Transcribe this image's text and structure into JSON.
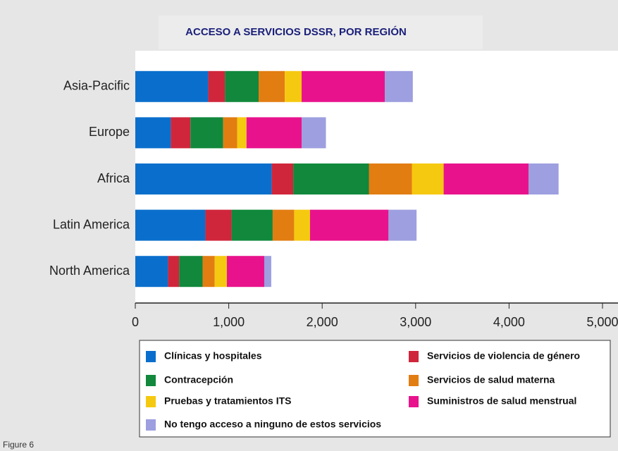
{
  "chart_data": {
    "type": "stacked-barh",
    "title": "ACCESO A SERVICIOS DSSR, POR REGIÓN",
    "caption": "Figure 6",
    "categories": [
      "Asia-Pacific",
      "Europe",
      "Africa",
      "Latin America",
      "North America"
    ],
    "series": [
      {
        "name": "Clínicas y hospitales",
        "color": "#0a6fcc",
        "values": [
          780,
          380,
          1460,
          750,
          350
        ]
      },
      {
        "name": "Servicios de violencia de género",
        "color": "#d0263b",
        "values": [
          180,
          210,
          230,
          280,
          120
        ]
      },
      {
        "name": "Contracepción",
        "color": "#11883c",
        "values": [
          360,
          350,
          810,
          440,
          250
        ]
      },
      {
        "name": "Servicios de salud materna",
        "color": "#e27d12",
        "values": [
          280,
          150,
          460,
          230,
          130
        ]
      },
      {
        "name": "Pruebas y tratamientos ITS",
        "color": "#f5c910",
        "values": [
          180,
          100,
          340,
          170,
          130
        ]
      },
      {
        "name": "Suministros de salud menstrual",
        "color": "#e8138c",
        "values": [
          890,
          590,
          910,
          840,
          400
        ]
      },
      {
        "name": "No tengo acceso a ninguno de estos servicios",
        "color": "#9d9fe0",
        "values": [
          300,
          260,
          320,
          300,
          75
        ]
      }
    ],
    "xlim": [
      0,
      5000
    ],
    "xticks": [
      0,
      {
        "value": 1000,
        "label": "1,000"
      },
      {
        "value": 2000,
        "label": "2,000"
      },
      {
        "value": 3000,
        "label": "3,000"
      },
      {
        "value": 4000,
        "label": "4,000"
      },
      {
        "value": 5000,
        "label": "5,000"
      }
    ],
    "legend": "bottom"
  }
}
